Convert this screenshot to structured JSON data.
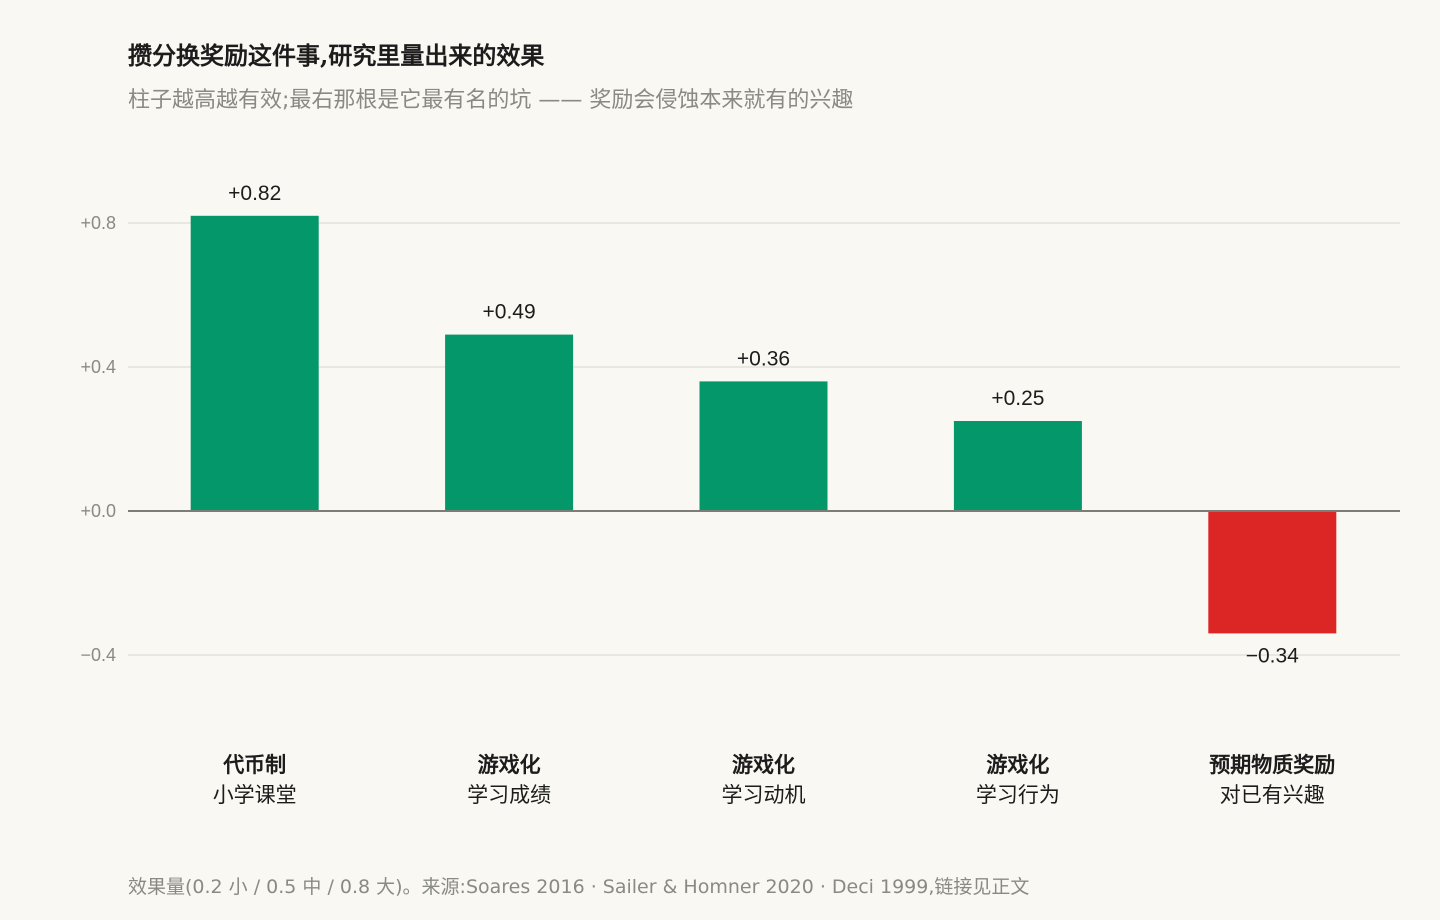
{
  "title": "攒分换奖励这件事,研究里量出来的效果",
  "subtitle": "柱子越高越有效;最右那根是它最有名的坑 —— 奖励会侵蚀本来就有的兴趣",
  "footer": "效果量(0.2 小 / 0.5 中 / 0.8 大)。来源:Soares 2016 · Sailer & Homner 2020 · Deci 1999,链接见正文",
  "colors": {
    "positive": "#04976a",
    "negative": "#dc2626",
    "grid": "#e2e1db",
    "baseline": "#7d7d78"
  },
  "chart_data": {
    "type": "bar",
    "title": "攒分换奖励这件事,研究里量出来的效果",
    "categories": [
      {
        "name": "代币制",
        "sub": "小学课堂"
      },
      {
        "name": "游戏化",
        "sub": "学习成绩"
      },
      {
        "name": "游戏化",
        "sub": "学习动机"
      },
      {
        "name": "游戏化",
        "sub": "学习行为"
      },
      {
        "name": "预期物质奖励",
        "sub": "对已有兴趣"
      }
    ],
    "values": [
      0.82,
      0.49,
      0.36,
      0.25,
      -0.34
    ],
    "value_labels": [
      "+0.82",
      "+0.49",
      "+0.36",
      "+0.25",
      "−0.34"
    ],
    "y_ticks": [
      0.8,
      0.4,
      0.0,
      -0.4
    ],
    "y_tick_labels": [
      "+0.8",
      "+0.4",
      "+0.0",
      "−0.4"
    ],
    "ylim": [
      -0.6,
      0.95
    ],
    "grid": true,
    "xlabel": "",
    "ylabel": ""
  }
}
